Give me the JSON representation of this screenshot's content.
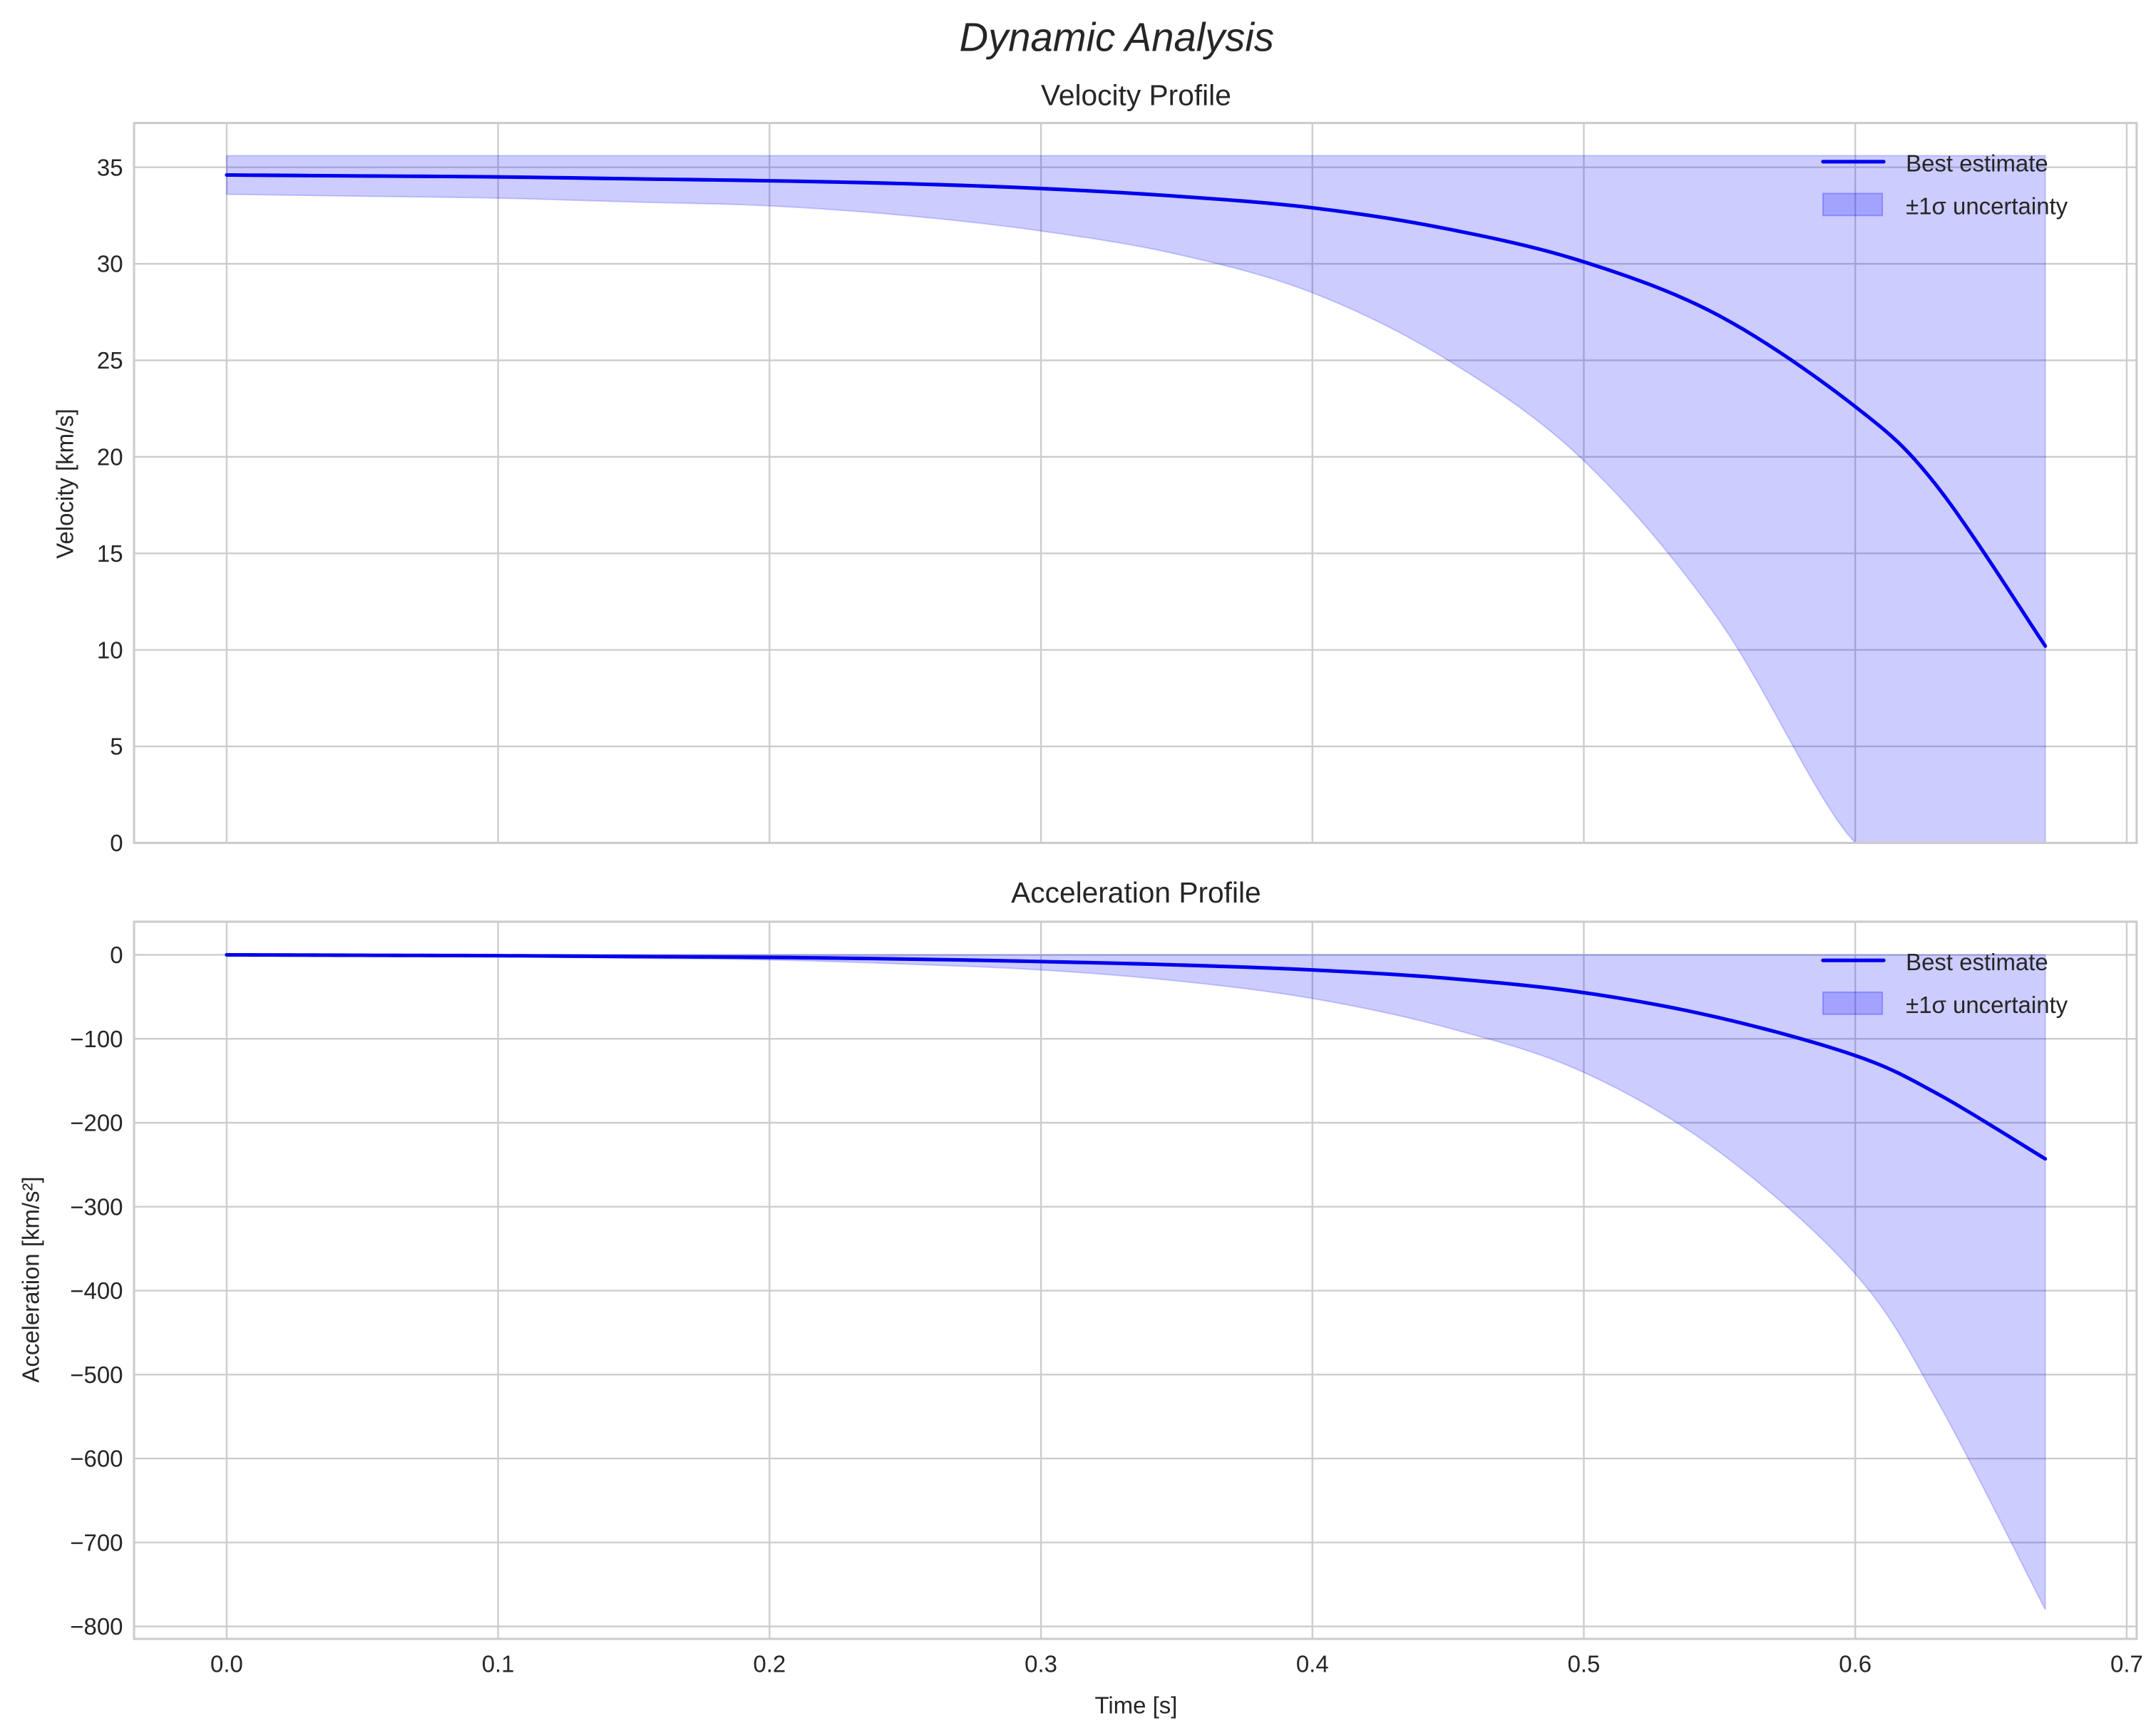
{
  "figure": {
    "title": "Dynamic Analysis"
  },
  "colors": {
    "line": "#0000ee",
    "band_fill": "#0000ff",
    "band_alpha": 0.2,
    "grid": "#cccccc",
    "text": "#262626"
  },
  "panels": [
    {
      "title": "Velocity Profile",
      "ylabel": "Velocity [km/s]",
      "yticks": [
        "0",
        "5",
        "10",
        "15",
        "20",
        "25",
        "30",
        "35"
      ],
      "legend": {
        "line_label": "Best estimate",
        "band_label": "±1σ uncertainty"
      }
    },
    {
      "title": "Acceleration Profile",
      "ylabel": "Acceleration [km/s²]",
      "xlabel": "Time [s]",
      "yticks": [
        "0",
        "−100",
        "−200",
        "−300",
        "−400",
        "−500",
        "−600",
        "−700",
        "−800"
      ],
      "xticks": [
        "0.0",
        "0.1",
        "0.2",
        "0.3",
        "0.4",
        "0.5",
        "0.6",
        "0.7"
      ],
      "legend": {
        "line_label": "Best estimate",
        "band_label": "±1σ uncertainty"
      }
    }
  ],
  "chart_data": [
    {
      "type": "line",
      "title": "Velocity Profile",
      "suptitle": "Dynamic Analysis",
      "xlabel": "",
      "ylabel": "Velocity [km/s]",
      "xlim": [
        -0.034,
        0.704
      ],
      "ylim": [
        0,
        37.3
      ],
      "grid": true,
      "legend_position": "upper right",
      "x": [
        0.0,
        0.05,
        0.1,
        0.15,
        0.2,
        0.25,
        0.3,
        0.35,
        0.4,
        0.45,
        0.5,
        0.55,
        0.6,
        0.63,
        0.67
      ],
      "series": [
        {
          "name": "Best estimate",
          "values": [
            34.6,
            34.55,
            34.5,
            34.4,
            34.3,
            34.15,
            33.9,
            33.5,
            32.9,
            31.8,
            30.1,
            27.3,
            22.6,
            18.5,
            10.2
          ]
        },
        {
          "name": "±1σ uncertainty (upper)",
          "values": [
            35.6,
            35.6,
            35.6,
            35.6,
            35.6,
            35.6,
            35.6,
            35.6,
            35.6,
            35.6,
            35.6,
            35.6,
            35.6,
            35.6,
            35.6
          ]
        },
        {
          "name": "±1σ uncertainty (lower)",
          "values": [
            33.6,
            33.5,
            33.4,
            33.2,
            33.0,
            32.5,
            31.7,
            30.5,
            28.5,
            25.0,
            19.8,
            11.5,
            0.0,
            0.0,
            0.0
          ]
        }
      ]
    },
    {
      "type": "line",
      "title": "Acceleration Profile",
      "xlabel": "Time [s]",
      "ylabel": "Acceleration [km/s²]",
      "xlim": [
        -0.034,
        0.704
      ],
      "ylim": [
        -820,
        40
      ],
      "grid": true,
      "legend_position": "upper right",
      "x": [
        0.0,
        0.05,
        0.1,
        0.15,
        0.2,
        0.25,
        0.3,
        0.35,
        0.4,
        0.45,
        0.5,
        0.55,
        0.6,
        0.63,
        0.67
      ],
      "series": [
        {
          "name": "Best estimate",
          "values": [
            0,
            -0.5,
            -1,
            -2,
            -3,
            -5,
            -8,
            -12,
            -18,
            -28,
            -45,
            -75,
            -120,
            -165,
            -243
          ]
        },
        {
          "name": "±1σ uncertainty (upper)",
          "values": [
            0,
            0,
            0,
            0,
            0,
            0,
            0,
            0,
            0,
            0,
            0,
            0,
            0,
            0,
            0
          ]
        },
        {
          "name": "±1σ uncertainty (lower)",
          "values": [
            0,
            -1,
            -2,
            -4,
            -6,
            -11,
            -18,
            -31,
            -52,
            -87,
            -140,
            -235,
            -380,
            -530,
            -780
          ]
        }
      ]
    }
  ]
}
